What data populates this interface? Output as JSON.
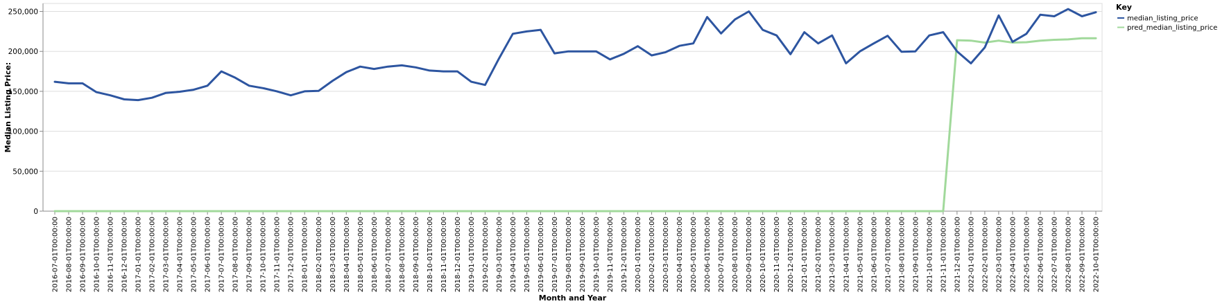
{
  "chart_data": {
    "type": "line",
    "xlabel": "Month and Year",
    "ylabel": "Median Listing Price:",
    "ylim": [
      0,
      260000
    ],
    "y_ticks": [
      0,
      50000,
      100000,
      150000,
      200000,
      250000
    ],
    "y_tick_labels": [
      "0",
      "50,000",
      "100,000",
      "150,000",
      "200,000",
      "250,000"
    ],
    "grid": true,
    "legend": {
      "title": "Key",
      "position": "top-right"
    },
    "x": [
      "2016-07-01T00:00:00",
      "2016-08-01T00:00:00",
      "2016-09-01T00:00:00",
      "2016-10-01T00:00:00",
      "2016-11-01T00:00:00",
      "2016-12-01T00:00:00",
      "2017-01-01T00:00:00",
      "2017-02-01T00:00:00",
      "2017-03-01T00:00:00",
      "2017-04-01T00:00:00",
      "2017-05-01T00:00:00",
      "2017-06-01T00:00:00",
      "2017-07-01T00:00:00",
      "2017-08-01T00:00:00",
      "2017-09-01T00:00:00",
      "2017-10-01T00:00:00",
      "2017-11-01T00:00:00",
      "2017-12-01T00:00:00",
      "2018-01-01T00:00:00",
      "2018-02-01T00:00:00",
      "2018-03-01T00:00:00",
      "2018-04-01T00:00:00",
      "2018-05-01T00:00:00",
      "2018-06-01T00:00:00",
      "2018-07-01T00:00:00",
      "2018-08-01T00:00:00",
      "2018-09-01T00:00:00",
      "2018-10-01T00:00:00",
      "2018-11-01T00:00:00",
      "2018-12-01T00:00:00",
      "2019-01-01T00:00:00",
      "2019-02-01T00:00:00",
      "2019-03-01T00:00:00",
      "2019-04-01T00:00:00",
      "2019-05-01T00:00:00",
      "2019-06-01T00:00:00",
      "2019-07-01T00:00:00",
      "2019-08-01T00:00:00",
      "2019-09-01T00:00:00",
      "2019-10-01T00:00:00",
      "2019-11-01T00:00:00",
      "2019-12-01T00:00:00",
      "2020-01-01T00:00:00",
      "2020-02-01T00:00:00",
      "2020-03-01T00:00:00",
      "2020-04-01T00:00:00",
      "2020-05-01T00:00:00",
      "2020-06-01T00:00:00",
      "2020-07-01T00:00:00",
      "2020-08-01T00:00:00",
      "2020-09-01T00:00:00",
      "2020-10-01T00:00:00",
      "2020-11-01T00:00:00",
      "2020-12-01T00:00:00",
      "2021-01-01T00:00:00",
      "2021-02-01T00:00:00",
      "2021-03-01T00:00:00",
      "2021-04-01T00:00:00",
      "2021-05-01T00:00:00",
      "2021-06-01T00:00:00",
      "2021-07-01T00:00:00",
      "2021-08-01T00:00:00",
      "2021-09-01T00:00:00",
      "2021-10-01T00:00:00",
      "2021-11-01T00:00:00",
      "2021-12-01T00:00:00",
      "2022-01-01T00:00:00",
      "2022-02-01T00:00:00",
      "2022-03-01T00:00:00",
      "2022-04-01T00:00:00",
      "2022-05-01T00:00:00",
      "2022-06-01T00:00:00",
      "2022-07-01T00:00:00",
      "2022-08-01T00:00:00",
      "2022-09-01T00:00:00",
      "2022-10-01T00:00:00"
    ],
    "series": [
      {
        "name": "median_listing_price",
        "color": "#2d55a0",
        "values": [
          162000,
          160000,
          160000,
          149000,
          145000,
          140000,
          139000,
          142000,
          148000,
          149500,
          152000,
          157000,
          175000,
          167000,
          157000,
          154000,
          150000,
          145000,
          150000,
          150500,
          163000,
          174000,
          181000,
          178000,
          181000,
          182500,
          180000,
          176000,
          175000,
          175000,
          162000,
          158000,
          191000,
          222000,
          225000,
          227000,
          197500,
          200000,
          200000,
          200000,
          190000,
          197000,
          206500,
          195000,
          199000,
          207000,
          210000,
          243000,
          222500,
          240000,
          250000,
          227000,
          220000,
          196500,
          224000,
          210000,
          220000,
          185000,
          200000,
          210000,
          219500,
          199500,
          200000,
          220000,
          224000,
          200000,
          185000,
          205000,
          245000,
          212000,
          222000,
          246000,
          244000,
          253000,
          244000,
          249000
        ]
      },
      {
        "name": "pred_median_listing_price",
        "color": "#a1d99b",
        "values": [
          0,
          0,
          0,
          0,
          0,
          0,
          0,
          0,
          0,
          0,
          0,
          0,
          0,
          0,
          0,
          0,
          0,
          0,
          0,
          0,
          0,
          0,
          0,
          0,
          0,
          0,
          0,
          0,
          0,
          0,
          0,
          0,
          0,
          0,
          0,
          0,
          0,
          0,
          0,
          0,
          0,
          0,
          0,
          0,
          0,
          0,
          0,
          0,
          0,
          0,
          0,
          0,
          0,
          0,
          0,
          0,
          0,
          0,
          0,
          0,
          0,
          0,
          0,
          0,
          0,
          214000,
          213500,
          211000,
          213500,
          211000,
          211500,
          213500,
          214500,
          215000,
          216500,
          216500
        ]
      }
    ]
  }
}
